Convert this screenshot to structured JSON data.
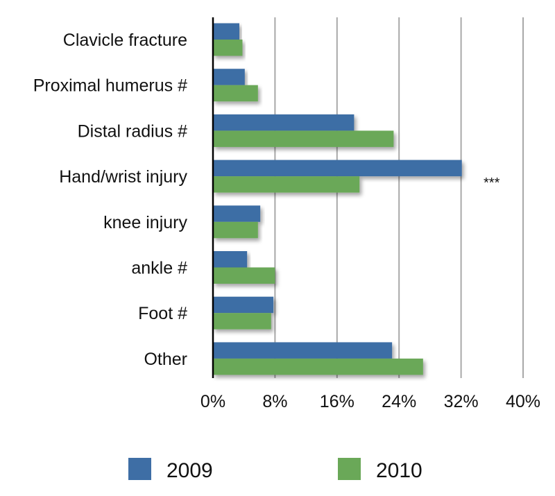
{
  "chart_data": {
    "type": "bar",
    "orientation": "horizontal",
    "categories": [
      "Clavicle fracture",
      "Proximal humerus #",
      "Distal radius #",
      "Hand/wrist injury",
      "knee injury",
      "ankle #",
      "Foot #",
      "Other"
    ],
    "series": [
      {
        "name": "2009",
        "color": "#3e6ea5",
        "values": [
          3.4,
          4.1,
          18.2,
          32.1,
          6.1,
          4.4,
          7.8,
          23.1
        ]
      },
      {
        "name": "2010",
        "color": "#6aa858",
        "values": [
          3.8,
          5.8,
          23.3,
          18.9,
          5.8,
          8.0,
          7.5,
          27.1
        ]
      }
    ],
    "xlim": [
      0,
      40
    ],
    "xticks": [
      "0%",
      "8%",
      "16%",
      "24%",
      "32%",
      "40%"
    ],
    "xtick_values": [
      0,
      8,
      16,
      24,
      32,
      40
    ],
    "grid": "vertical",
    "legend": "bottom",
    "annotations": [
      {
        "category": "Hand/wrist injury",
        "text": "***"
      }
    ]
  }
}
